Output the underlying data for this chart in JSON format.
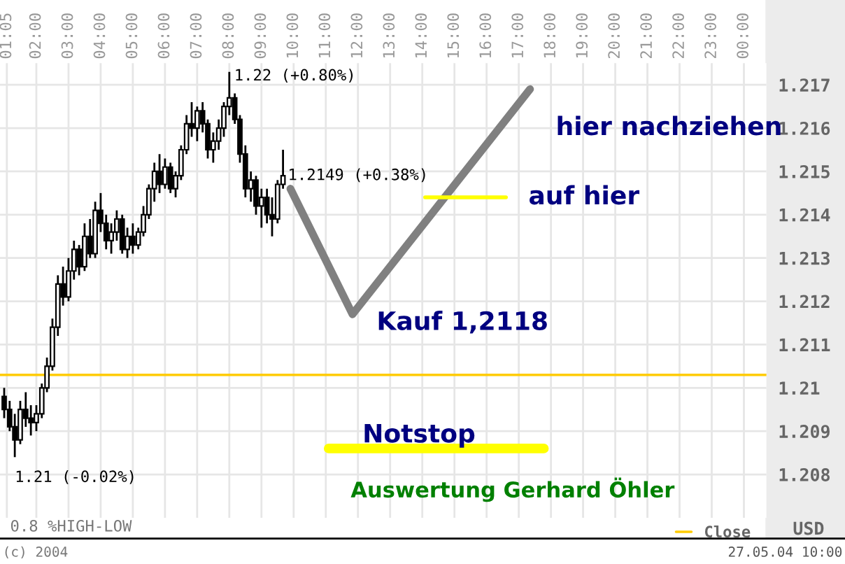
{
  "chart_data": {
    "type": "candlestick",
    "ylabel": "USD",
    "xlim": [
      0.87,
      24.7
    ],
    "ylim": [
      1.207,
      1.2175
    ],
    "xticks": [
      {
        "value": 1.0833,
        "label": "01:05"
      },
      {
        "value": 2,
        "label": "02:00"
      },
      {
        "value": 3,
        "label": "03:00"
      },
      {
        "value": 4,
        "label": "04:00"
      },
      {
        "value": 5,
        "label": "05:00"
      },
      {
        "value": 6,
        "label": "06:00"
      },
      {
        "value": 7,
        "label": "07:00"
      },
      {
        "value": 8,
        "label": "08:00"
      },
      {
        "value": 9,
        "label": "09:00"
      },
      {
        "value": 10,
        "label": "10:00"
      },
      {
        "value": 11,
        "label": "11:00"
      },
      {
        "value": 12,
        "label": "12:00"
      },
      {
        "value": 13,
        "label": "13:00"
      },
      {
        "value": 14,
        "label": "14:00"
      },
      {
        "value": 15,
        "label": "15:00"
      },
      {
        "value": 16,
        "label": "16:00"
      },
      {
        "value": 17,
        "label": "17:00"
      },
      {
        "value": 18,
        "label": "18:00"
      },
      {
        "value": 19,
        "label": "19:00"
      },
      {
        "value": 20,
        "label": "20:00"
      },
      {
        "value": 21,
        "label": "21:00"
      },
      {
        "value": 22,
        "label": "22:00"
      },
      {
        "value": 23,
        "label": "23:00"
      },
      {
        "value": 24,
        "label": "00:00"
      }
    ],
    "yticks": [
      1.208,
      1.209,
      1.21,
      1.211,
      1.212,
      1.213,
      1.214,
      1.215,
      1.216,
      1.217
    ],
    "grid": true,
    "legend": "bottom right",
    "marker": "none",
    "series": [
      {
        "x": [
          1.0,
          1.17,
          1.33,
          1.5,
          1.67,
          1.83,
          2.0,
          2.17,
          2.33,
          2.5,
          2.67,
          2.83,
          3.0,
          3.17,
          3.33,
          3.5,
          3.67,
          3.83,
          4.0,
          4.17,
          4.33,
          4.5,
          4.67,
          4.83,
          5.0,
          5.17,
          5.33,
          5.5,
          5.67,
          5.83,
          6.0,
          6.17,
          6.33,
          6.5,
          6.67,
          6.83,
          7.0,
          7.17,
          7.33,
          7.5,
          7.67,
          7.83,
          8.0,
          8.17,
          8.33,
          8.5,
          8.67,
          8.83,
          9.0,
          9.17,
          9.33,
          9.5,
          9.67
        ],
        "ohlc": [
          [
            1.2098,
            1.21,
            1.2093,
            1.2095
          ],
          [
            1.2095,
            1.2097,
            1.209,
            1.2091
          ],
          [
            1.2091,
            1.2094,
            1.2084,
            1.2088
          ],
          [
            1.2088,
            1.2097,
            1.2087,
            1.2095
          ],
          [
            1.2095,
            1.2099,
            1.2091,
            1.2093
          ],
          [
            1.2093,
            1.2096,
            1.2089,
            1.2092
          ],
          [
            1.2092,
            1.2096,
            1.209,
            1.2094
          ],
          [
            1.2094,
            1.2101,
            1.2093,
            1.21
          ],
          [
            1.21,
            1.2107,
            1.2099,
            1.2105
          ],
          [
            1.2105,
            1.2116,
            1.2104,
            1.2114
          ],
          [
            1.2114,
            1.2126,
            1.2112,
            1.2124
          ],
          [
            1.2124,
            1.2128,
            1.2119,
            1.2121
          ],
          [
            1.2121,
            1.213,
            1.212,
            1.2127
          ],
          [
            1.2127,
            1.2134,
            1.2125,
            1.2132
          ],
          [
            1.2132,
            1.2133,
            1.2126,
            1.2128
          ],
          [
            1.2128,
            1.2138,
            1.2127,
            1.2135
          ],
          [
            1.2135,
            1.2139,
            1.213,
            1.2131
          ],
          [
            1.2131,
            1.2143,
            1.213,
            1.2141
          ],
          [
            1.2141,
            1.2145,
            1.2136,
            1.2138
          ],
          [
            1.2138,
            1.214,
            1.2132,
            1.2134
          ],
          [
            1.2134,
            1.2138,
            1.2131,
            1.2136
          ],
          [
            1.2136,
            1.2141,
            1.2134,
            1.2139
          ],
          [
            1.2139,
            1.214,
            1.2131,
            1.2132
          ],
          [
            1.2132,
            1.2137,
            1.213,
            1.2135
          ],
          [
            1.2135,
            1.2138,
            1.2131,
            1.2133
          ],
          [
            1.2133,
            1.2137,
            1.2132,
            1.2136
          ],
          [
            1.2136,
            1.2142,
            1.2135,
            1.214
          ],
          [
            1.214,
            1.2147,
            1.2139,
            1.2146
          ],
          [
            1.2146,
            1.2152,
            1.2143,
            1.215
          ],
          [
            1.215,
            1.2154,
            1.2145,
            1.2147
          ],
          [
            1.2147,
            1.2153,
            1.2146,
            1.2151
          ],
          [
            1.2151,
            1.2152,
            1.2145,
            1.2146
          ],
          [
            1.2146,
            1.215,
            1.2144,
            1.2149
          ],
          [
            1.2149,
            1.2156,
            1.2148,
            1.2155
          ],
          [
            1.2155,
            1.2163,
            1.2154,
            1.2161
          ],
          [
            1.2161,
            1.2166,
            1.2158,
            1.216
          ],
          [
            1.216,
            1.2165,
            1.2157,
            1.2164
          ],
          [
            1.2164,
            1.2166,
            1.2159,
            1.2161
          ],
          [
            1.2161,
            1.2162,
            1.2153,
            1.2155
          ],
          [
            1.2155,
            1.2159,
            1.2152,
            1.2157
          ],
          [
            1.2157,
            1.2162,
            1.2155,
            1.216
          ],
          [
            1.216,
            1.2166,
            1.2158,
            1.2165
          ],
          [
            1.2165,
            1.2173,
            1.2163,
            1.2167
          ],
          [
            1.2167,
            1.2168,
            1.2161,
            1.2162
          ],
          [
            1.2162,
            1.2163,
            1.2152,
            1.2154
          ],
          [
            1.2154,
            1.2156,
            1.2144,
            1.2146
          ],
          [
            1.2146,
            1.215,
            1.2143,
            1.2148
          ],
          [
            1.2148,
            1.2149,
            1.214,
            1.2142
          ],
          [
            1.2142,
            1.2146,
            1.2137,
            1.2144
          ],
          [
            1.2144,
            1.2146,
            1.2138,
            1.214
          ],
          [
            1.214,
            1.2144,
            1.2135,
            1.2139
          ],
          [
            1.2139,
            1.2148,
            1.2138,
            1.2147
          ],
          [
            1.2147,
            1.2155,
            1.2146,
            1.2149
          ]
        ]
      },
      {
        "type": "line",
        "color": "#808080",
        "x": [
          9.9,
          11.83,
          17.35
        ],
        "values": [
          1.2146,
          1.2117,
          1.2169
        ]
      },
      {
        "type": "line",
        "color": "#ffff00",
        "x": [
          14.09,
          16.6
        ],
        "values": [
          1.2144,
          1.2144
        ]
      },
      {
        "type": "line",
        "color": "#ffff00",
        "x": [
          11.09,
          17.78
        ],
        "values": [
          1.2086,
          1.2086
        ]
      }
    ],
    "ref_lines": [
      {
        "axis": "y",
        "value": 1.2103,
        "label": "Close",
        "color": "#ffcc00"
      }
    ],
    "annotations": [
      {
        "text": "1.22 (+0.80%)",
        "x": 8.0,
        "y": 1.2173
      },
      {
        "text": "1.2149 (+0.38%)",
        "x": 9.67,
        "y": 1.2149
      },
      {
        "text": "1.21 (-0.02%)",
        "x": 1.33,
        "y": 1.2084
      },
      {
        "text": "hier nachziehen",
        "x": 17.35,
        "y": 1.2169
      },
      {
        "text": "auf hier",
        "x": 16.6,
        "y": 1.2144
      },
      {
        "text": "Kauf 1,2118",
        "x": 11.83,
        "y": 1.2117
      },
      {
        "text": "Notstop",
        "x": 11.09,
        "y": 1.2086
      },
      "Auswertung Gerhard Öhler",
      "0.8 %HIGH-LOW",
      "(c) 2004",
      "27.05.04 10:00"
    ]
  }
}
